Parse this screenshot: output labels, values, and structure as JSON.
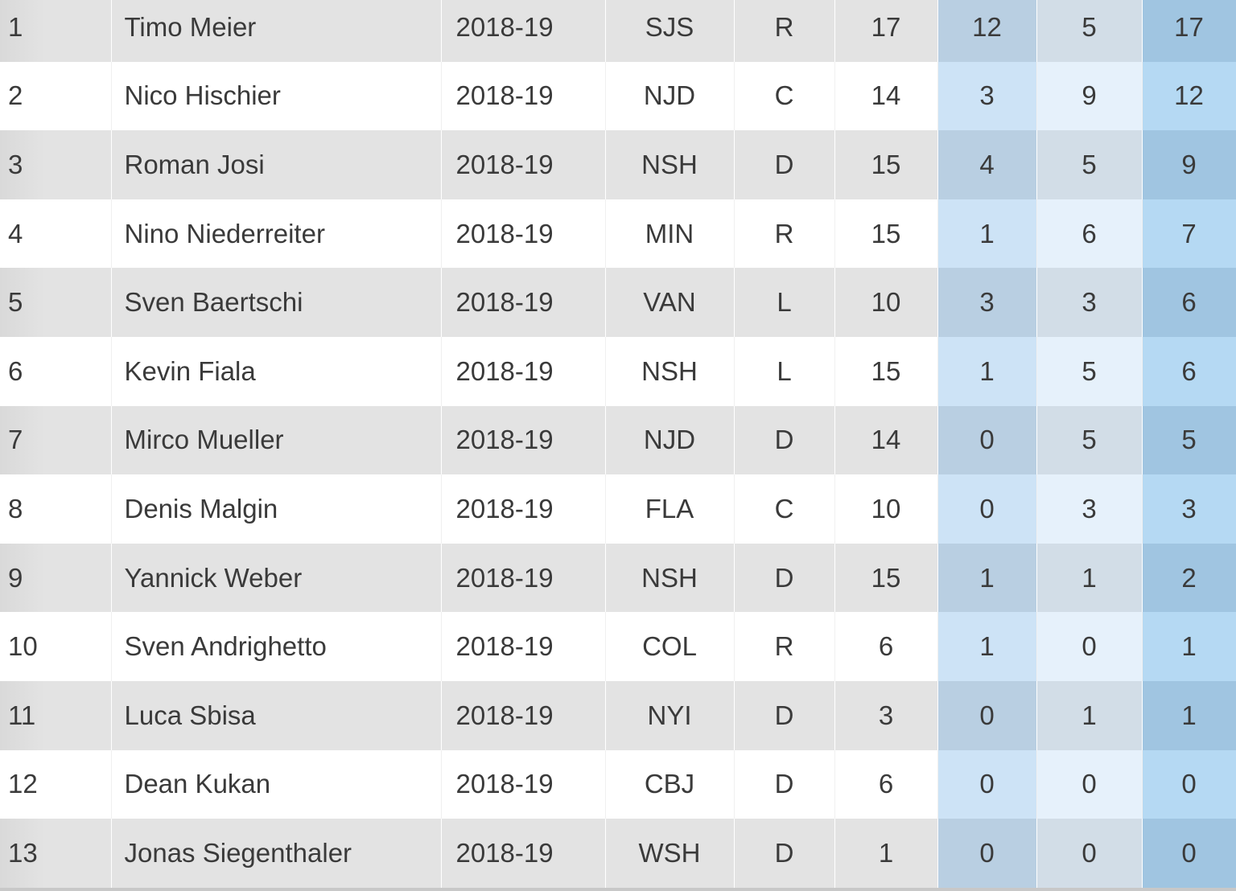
{
  "table": {
    "rows": [
      [
        1,
        "Timo Meier",
        "2018-19",
        "SJS",
        "R",
        17,
        12,
        5,
        17
      ],
      [
        2,
        "Nico Hischier",
        "2018-19",
        "NJD",
        "C",
        14,
        3,
        9,
        12
      ],
      [
        3,
        "Roman Josi",
        "2018-19",
        "NSH",
        "D",
        15,
        4,
        5,
        9
      ],
      [
        4,
        "Nino Niederreiter",
        "2018-19",
        "MIN",
        "R",
        15,
        1,
        6,
        7
      ],
      [
        5,
        "Sven Baertschi",
        "2018-19",
        "VAN",
        "L",
        10,
        3,
        3,
        6
      ],
      [
        6,
        "Kevin Fiala",
        "2018-19",
        "NSH",
        "L",
        15,
        1,
        5,
        6
      ],
      [
        7,
        "Mirco Mueller",
        "2018-19",
        "NJD",
        "D",
        14,
        0,
        5,
        5
      ],
      [
        8,
        "Denis Malgin",
        "2018-19",
        "FLA",
        "C",
        10,
        0,
        3,
        3
      ],
      [
        9,
        "Yannick Weber",
        "2018-19",
        "NSH",
        "D",
        15,
        1,
        1,
        2
      ],
      [
        10,
        "Sven Andrighetto",
        "2018-19",
        "COL",
        "R",
        6,
        1,
        0,
        1
      ],
      [
        11,
        "Luca Sbisa",
        "2018-19",
        "NYI",
        "D",
        3,
        0,
        1,
        1
      ],
      [
        12,
        "Dean Kukan",
        "2018-19",
        "CBJ",
        "D",
        6,
        0,
        0,
        0
      ],
      [
        13,
        "Jonas Siegenthaler",
        "2018-19",
        "WSH",
        "D",
        1,
        0,
        0,
        0
      ]
    ]
  }
}
